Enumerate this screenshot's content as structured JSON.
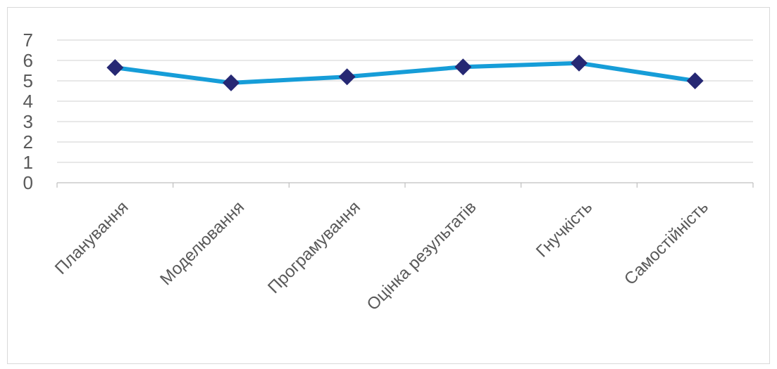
{
  "chart_data": {
    "type": "line",
    "categories": [
      "Планування",
      "Моделювання",
      "Програмування",
      "Оцінка результатів",
      "Гнучкість",
      "Самостійність"
    ],
    "series": [
      {
        "values": [
          5.65,
          4.9,
          5.2,
          5.68,
          5.87,
          5.0
        ]
      }
    ],
    "ylim": [
      0,
      7
    ],
    "yticks": [
      "0",
      "1",
      "2",
      "3",
      "4",
      "5",
      "6",
      "7"
    ],
    "grid": true,
    "legend": "none",
    "colors": {
      "line": "#169dd8",
      "marker": "#262873",
      "grid": "#d9d9d9",
      "axis": "#bfbfbf",
      "text": "#595959",
      "border": "#d9d9d9"
    }
  }
}
